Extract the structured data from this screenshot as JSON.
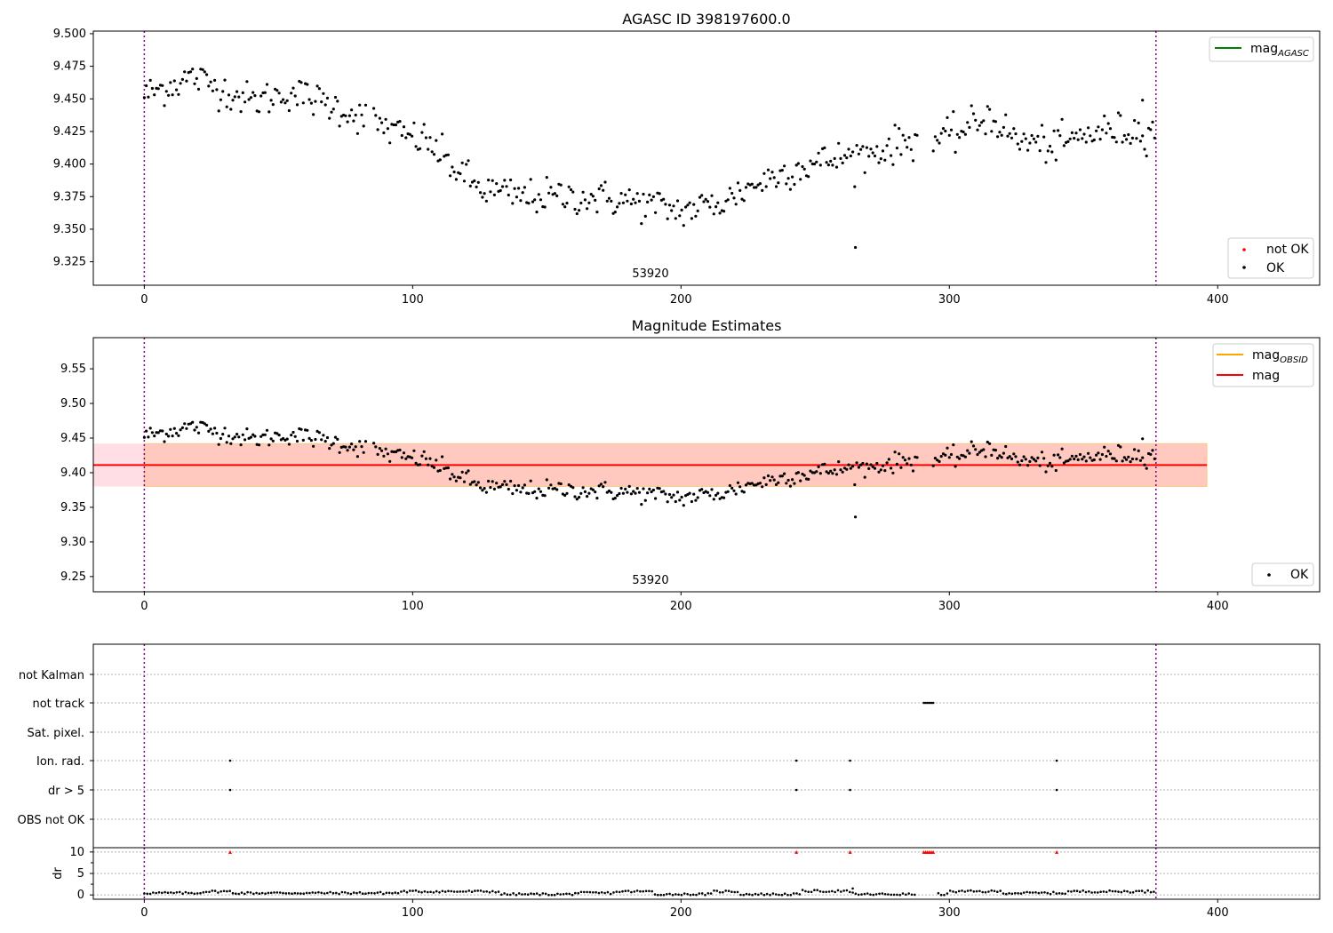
{
  "chart_data": [
    {
      "type": "scatter",
      "title": "AGASC ID 398197600.0",
      "xlim": [
        -19,
        438
      ],
      "ylim": [
        9.307,
        9.502
      ],
      "xticks": [
        0,
        100,
        200,
        300,
        400
      ],
      "yticks": [
        9.325,
        9.35,
        9.375,
        9.4,
        9.425,
        9.45,
        9.475,
        9.5
      ],
      "ytick_labels": [
        "9.325",
        "9.350",
        "9.375",
        "9.400",
        "9.425",
        "9.450",
        "9.475",
        "9.500"
      ],
      "annotation": "53920",
      "annotation_x": 188,
      "vlines": [
        0,
        377
      ],
      "legend_upper": [
        {
          "label": "mag",
          "sub": "AGASC",
          "color": "#008000"
        }
      ],
      "legend_lower": [
        {
          "label": "not OK",
          "color": "#ff0000"
        },
        {
          "label": "OK",
          "color": "#000000"
        }
      ],
      "series": [
        {
          "name": "OK",
          "color": "#000000",
          "x": [],
          "y": []
        }
      ]
    },
    {
      "type": "scatter",
      "title": "Magnitude Estimates",
      "xlim": [
        -19,
        438
      ],
      "ylim": [
        9.228,
        9.595
      ],
      "xticks": [
        0,
        100,
        200,
        300,
        400
      ],
      "yticks": [
        9.25,
        9.3,
        9.35,
        9.4,
        9.45,
        9.5,
        9.55
      ],
      "ytick_labels": [
        "9.25",
        "9.30",
        "9.35",
        "9.40",
        "9.45",
        "9.50",
        "9.55"
      ],
      "annotation": "53920",
      "annotation_x": 188,
      "vlines": [
        0,
        377
      ],
      "mag_line": 9.411,
      "band_pink": [
        9.38,
        9.442
      ],
      "band_pink_x": [
        -19,
        396
      ],
      "band_orange": [
        9.38,
        9.442
      ],
      "band_orange_x": [
        0,
        396
      ],
      "legend_upper": [
        {
          "label": "mag",
          "sub": "OBSID",
          "color": "#ffa500"
        },
        {
          "label": "mag",
          "sub": "",
          "color": "#ff0000"
        }
      ],
      "legend_lower": [
        {
          "label": "OK",
          "color": "#000000"
        }
      ],
      "series": [
        {
          "name": "OK",
          "color": "#000000",
          "x": [],
          "y": []
        }
      ]
    },
    {
      "type": "scatter",
      "xlim": [
        -19,
        438
      ],
      "xticks": [
        0,
        100,
        200,
        300,
        400
      ],
      "vlines": [
        0,
        377
      ],
      "flag_rows": [
        "not Kalman",
        "not track",
        "Sat. pixel.",
        "Ion. rad.",
        "dr > 5",
        "OBS not OK"
      ],
      "flags": {
        "not track": [
          290.5,
          291.2,
          291.9,
          292.6,
          293.3,
          294.0
        ],
        "Ion. rad.": [
          32,
          243,
          263,
          340
        ],
        "dr > 5": [
          32,
          243,
          263,
          340
        ]
      },
      "dr_ylim": [
        -1,
        11
      ],
      "dr_yticks": [
        0,
        5,
        10
      ],
      "dr_ylabel": "dr",
      "dr_red_x": [
        32,
        243,
        263,
        290.5,
        291.2,
        291.9,
        292.6,
        293.3,
        294.0,
        340
      ],
      "dr_red_y": 10
    }
  ]
}
